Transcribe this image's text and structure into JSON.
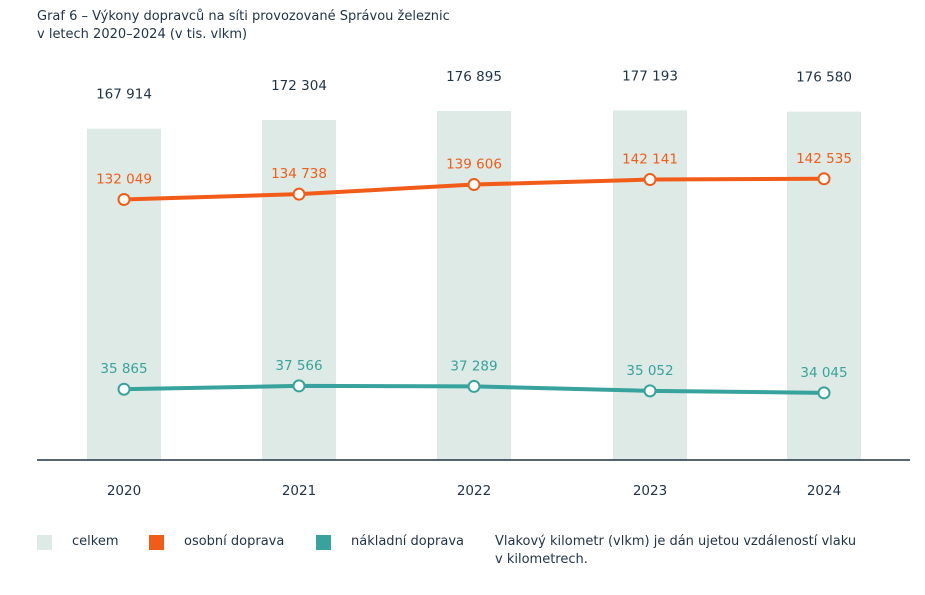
{
  "title": {
    "line1": "Graf 6 – Výkony dopravců na síti provozované Správou železnic",
    "line2": "v letech 2020–2024 (v tis. vlkm)"
  },
  "colors": {
    "celkem": "#deeae6",
    "osobni": "#f25c19",
    "nakladni": "#37a39c",
    "text": "#1f3347",
    "axis": "#1f3347"
  },
  "legend": {
    "celkem": "celkem",
    "osobni": "osobní doprava",
    "nakladni": "nákladní doprava"
  },
  "note": {
    "line1": "Vlakový kilometr (vlkm) je dán ujetou vzdáleností vlaku",
    "line2": "v kilometrech."
  },
  "chart_data": {
    "type": "bar",
    "categories": [
      "2020",
      "2021",
      "2022",
      "2023",
      "2024"
    ],
    "series": [
      {
        "name": "celkem",
        "kind": "bar",
        "values": [
          167914,
          172304,
          176895,
          177193,
          176580
        ],
        "labels": [
          "167 914",
          "172 304",
          "176 895",
          "177 193",
          "176 580"
        ]
      },
      {
        "name": "osobní doprava",
        "kind": "line",
        "values": [
          132049,
          134738,
          139606,
          142141,
          142535
        ],
        "labels": [
          "132 049",
          "134 738",
          "139 606",
          "142 141",
          "142 535"
        ]
      },
      {
        "name": "nákladní doprava",
        "kind": "line",
        "values": [
          35865,
          37566,
          37289,
          35052,
          34045
        ],
        "labels": [
          "35 865",
          "37 566",
          "37 289",
          "35 052",
          "34 045"
        ]
      }
    ],
    "grid": false,
    "legend_position": "bottom"
  }
}
